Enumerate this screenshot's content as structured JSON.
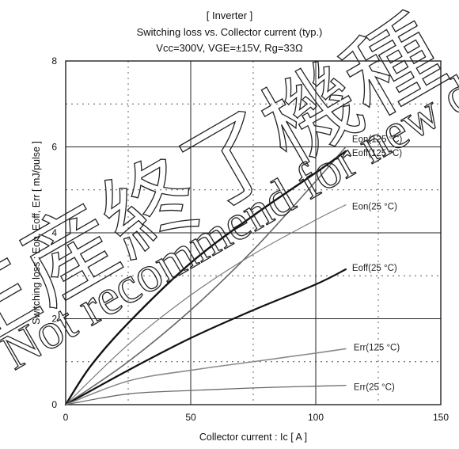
{
  "chart_data": {
    "type": "line",
    "title_lines": [
      "[ Inverter ]",
      "Switching loss  vs.  Collector current  (typ.)",
      "Vcc=300V, VGE=±15V, Rg=33Ω"
    ],
    "xlabel": "Collector current  :  Ic  [ A ]",
    "ylabel": "Switching loss  :  Eon, Eoff, Err  [ mJ/pulse ]",
    "xlim": [
      0,
      150
    ],
    "ylim": [
      0,
      8
    ],
    "x_ticks": [
      "0",
      "50",
      "100",
      "150"
    ],
    "y_ticks": [
      "0",
      "2",
      "4",
      "6",
      "8"
    ],
    "grid": true,
    "series": [
      {
        "name": "Eon(125 °C)",
        "color": "#666666",
        "width": 1.6,
        "x": [
          0,
          25,
          50,
          75,
          100,
          112
        ],
        "y": [
          0,
          1.0,
          2.2,
          3.6,
          5.2,
          6.0
        ]
      },
      {
        "name": "Eoff(125 °C)",
        "color": "#111111",
        "width": 2.4,
        "x": [
          0,
          10,
          25,
          50,
          75,
          100,
          112
        ],
        "y": [
          0,
          0.9,
          1.9,
          3.3,
          4.4,
          5.4,
          5.9
        ]
      },
      {
        "name": "Eon(25 °C)",
        "color": "#7a7a7a",
        "width": 1.2,
        "x": [
          0,
          25,
          50,
          75,
          100,
          112
        ],
        "y": [
          0,
          1.4,
          2.55,
          3.5,
          4.3,
          4.65
        ]
      },
      {
        "name": "Eoff(25 °C)",
        "color": "#111111",
        "width": 2.2,
        "x": [
          0,
          25,
          50,
          75,
          100,
          112
        ],
        "y": [
          0,
          0.8,
          1.55,
          2.2,
          2.8,
          3.15
        ]
      },
      {
        "name": "Err(125 °C)",
        "color": "#8a8a8a",
        "width": 1.6,
        "x": [
          0,
          25,
          50,
          75,
          100,
          112
        ],
        "y": [
          0,
          0.55,
          0.8,
          1.0,
          1.2,
          1.3
        ]
      },
      {
        "name": "Err(25 °C)",
        "color": "#6a6a6a",
        "width": 1.3,
        "x": [
          0,
          25,
          50,
          75,
          100,
          112
        ],
        "y": [
          0,
          0.25,
          0.33,
          0.39,
          0.43,
          0.45
        ]
      }
    ],
    "annotations": [
      {
        "text": "Eon(125 °C)",
        "series": 0
      },
      {
        "text": "Eoff(125 °C)",
        "series": 1
      },
      {
        "text": "Eon(25 °C)",
        "series": 2
      },
      {
        "text": "Eoff(25 °C)",
        "series": 3
      },
      {
        "text": "Err(125 °C)",
        "series": 4
      },
      {
        "text": "Err(25 °C)",
        "series": 5
      }
    ]
  },
  "watermark": {
    "line1": "生産終了機種",
    "line2": "Not recommend for new design."
  }
}
